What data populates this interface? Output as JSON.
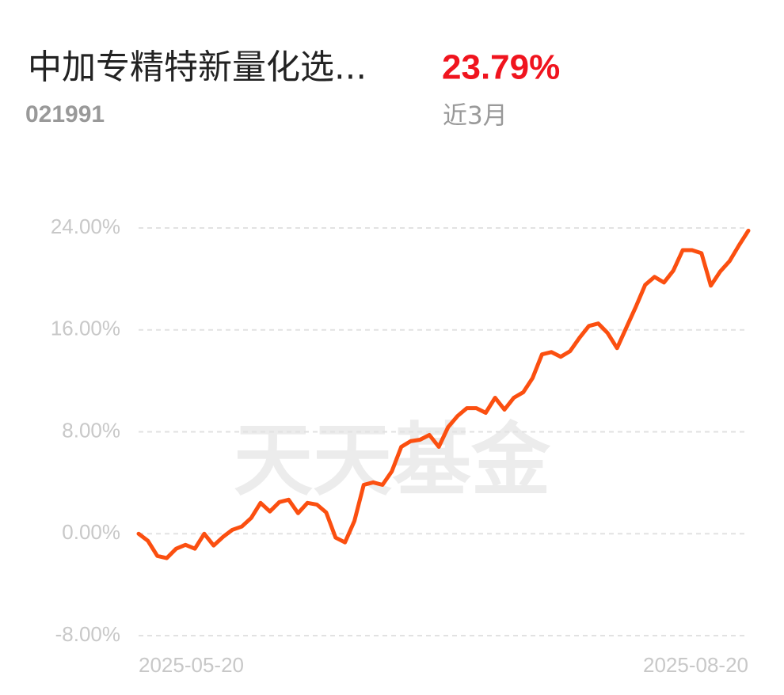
{
  "header": {
    "title": "中加专精特新量化选...",
    "code": "021991",
    "return": "23.79%",
    "period": "近3月"
  },
  "chart_data": {
    "type": "line",
    "watermark": "天天基金",
    "categories": [
      "2025-05-20",
      null,
      null,
      null,
      null,
      null,
      null,
      null,
      null,
      null,
      null,
      null,
      null,
      null,
      null,
      null,
      null,
      null,
      null,
      null,
      null,
      null,
      null,
      null,
      null,
      null,
      null,
      null,
      null,
      null,
      null,
      null,
      null,
      null,
      null,
      null,
      null,
      null,
      null,
      null,
      null,
      null,
      null,
      null,
      null,
      null,
      null,
      null,
      null,
      null,
      null,
      null,
      null,
      null,
      null,
      null,
      null,
      null,
      null,
      null,
      null,
      null,
      null,
      null,
      null,
      "2025-08-20"
    ],
    "series": [
      {
        "color": "#fb4f10",
        "values": [
          0,
          -0.56,
          -1.74,
          -1.92,
          -1.18,
          -0.87,
          -1.18,
          0,
          -0.93,
          -0.25,
          0.31,
          0.56,
          1.24,
          2.42,
          1.74,
          2.48,
          2.67,
          1.61,
          2.42,
          2.29,
          1.67,
          -0.31,
          -0.68,
          0.99,
          3.84,
          4.03,
          3.84,
          4.9,
          6.82,
          7.26,
          7.38,
          7.75,
          6.82,
          8.37,
          9.24,
          9.86,
          9.86,
          9.49,
          10.67,
          9.74,
          10.67,
          11.1,
          12.22,
          14.08,
          14.26,
          13.89,
          14.33,
          15.38,
          16.31,
          16.5,
          15.75,
          14.57,
          16.19,
          17.8,
          19.53,
          20.16,
          19.72,
          20.65,
          22.26,
          22.26,
          22.02,
          19.47,
          20.59,
          21.4,
          22.64,
          23.79
        ]
      }
    ],
    "ylim": [
      -8,
      24
    ],
    "yticks": [
      {
        "value": -8,
        "label": "-8.00%"
      },
      {
        "value": 0,
        "label": "0.00%"
      },
      {
        "value": 8,
        "label": "8.00%"
      },
      {
        "value": 16,
        "label": "16.00%"
      },
      {
        "value": 24,
        "label": "24.00%"
      }
    ],
    "grid": true
  }
}
